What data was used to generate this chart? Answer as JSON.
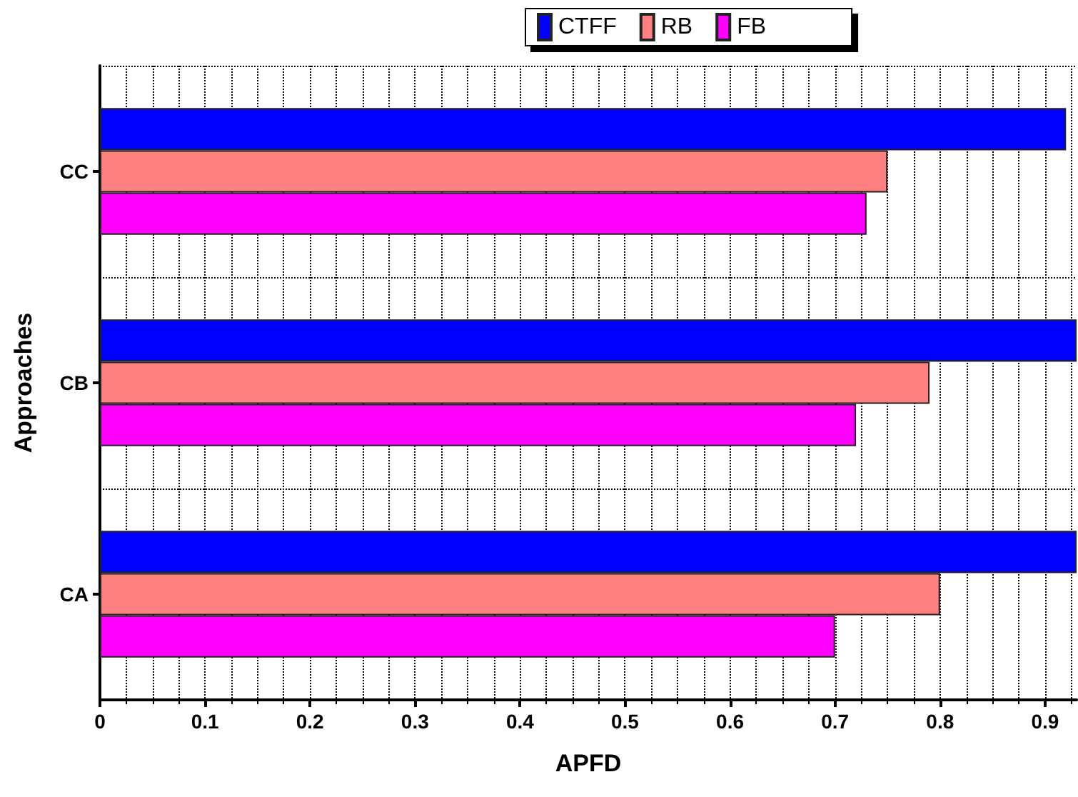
{
  "chart_data": {
    "type": "bar",
    "orientation": "horizontal",
    "xlabel": "APFD",
    "ylabel": "Approaches",
    "categories": [
      "CC",
      "CB",
      "CA"
    ],
    "series": [
      {
        "name": "CTFF",
        "color": "#0000ff",
        "values": [
          0.92,
          0.93,
          0.93
        ]
      },
      {
        "name": "RB",
        "color": "#ff8080",
        "values": [
          0.75,
          0.79,
          0.8
        ]
      },
      {
        "name": "FB",
        "color": "#ff00ff",
        "values": [
          0.73,
          0.72,
          0.7
        ]
      }
    ],
    "xlim": [
      0,
      0.93
    ],
    "xticks": [
      0,
      0.1,
      0.2,
      0.3,
      0.4,
      0.5,
      0.6,
      0.7,
      0.8,
      0.9
    ],
    "grid": true,
    "legend": "top"
  }
}
